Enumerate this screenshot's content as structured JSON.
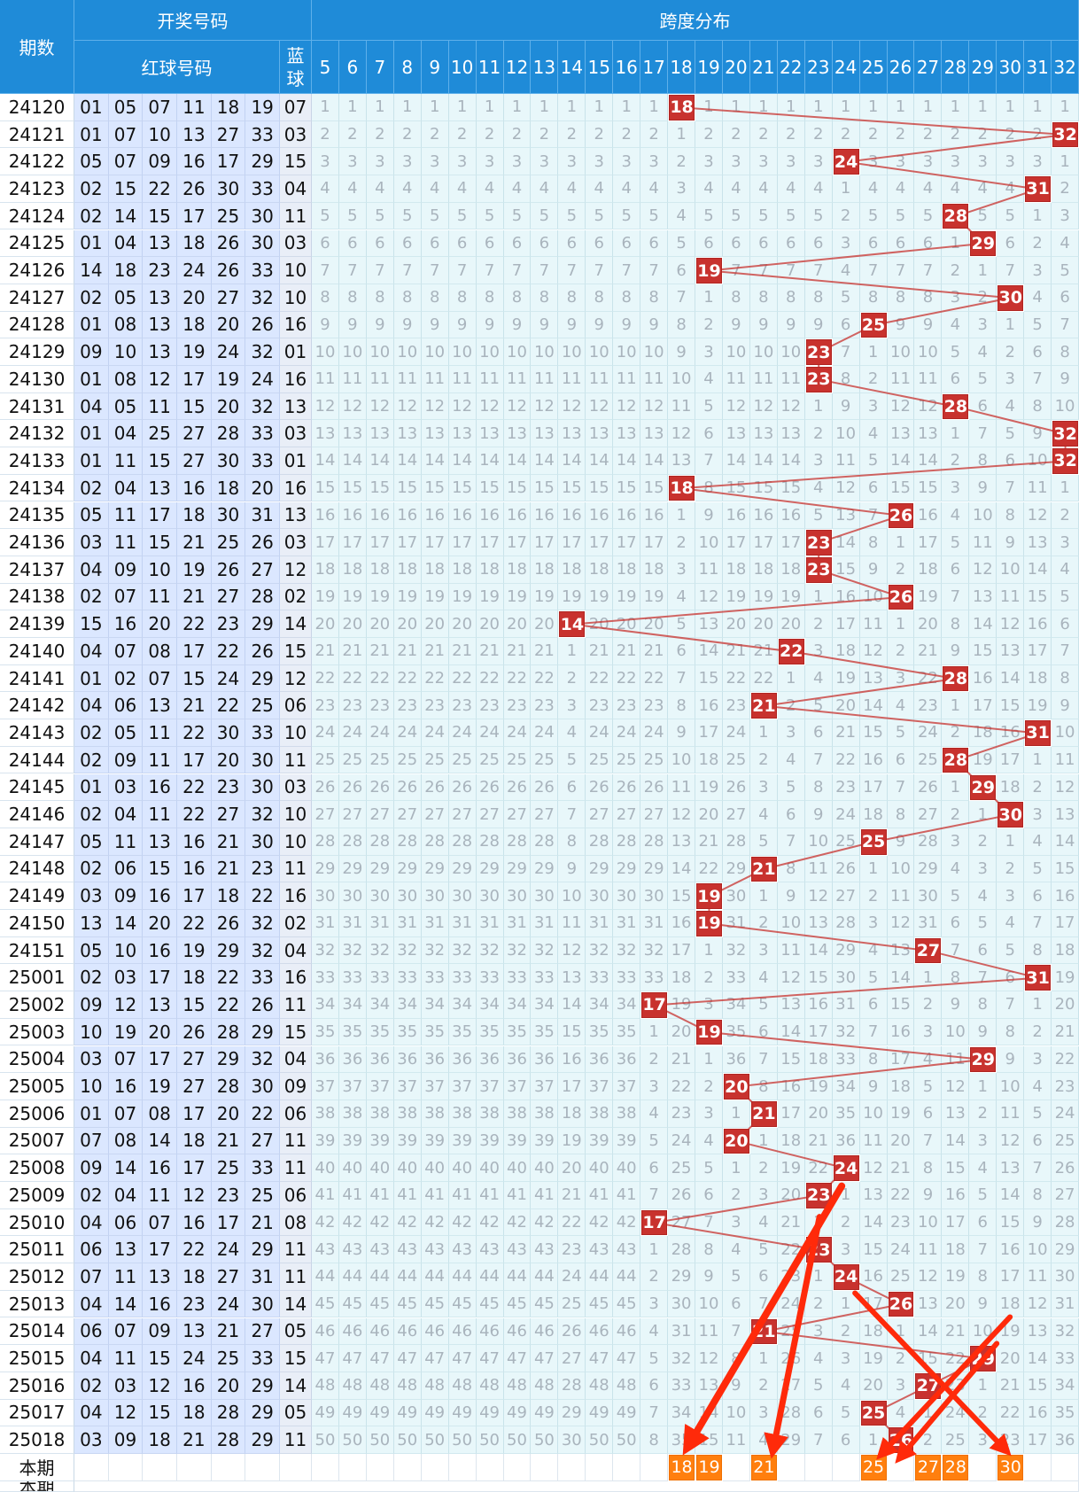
{
  "header": {
    "issue": "期数",
    "draw": "开奖号码",
    "red": "红球号码",
    "blue": "蓝球",
    "span": "跨度分布"
  },
  "span_cols": [
    "5",
    "6",
    "7",
    "8",
    "9",
    "10",
    "11",
    "12",
    "13",
    "14",
    "15",
    "16",
    "17",
    "18",
    "19",
    "20",
    "21",
    "22",
    "23",
    "24",
    "25",
    "26",
    "27",
    "28",
    "29",
    "30",
    "31",
    "32"
  ],
  "rows": [
    {
      "issue": "24120",
      "red": [
        "01",
        "05",
        "07",
        "11",
        "18",
        "19"
      ],
      "blue": "07",
      "span": 18
    },
    {
      "issue": "24121",
      "red": [
        "01",
        "07",
        "10",
        "13",
        "27",
        "33"
      ],
      "blue": "03",
      "span": 32
    },
    {
      "issue": "24122",
      "red": [
        "05",
        "07",
        "09",
        "16",
        "17",
        "29"
      ],
      "blue": "15",
      "span": 24
    },
    {
      "issue": "24123",
      "red": [
        "02",
        "15",
        "22",
        "26",
        "30",
        "33"
      ],
      "blue": "04",
      "span": 31
    },
    {
      "issue": "24124",
      "red": [
        "02",
        "14",
        "15",
        "17",
        "25",
        "30"
      ],
      "blue": "11",
      "span": 28
    },
    {
      "issue": "24125",
      "red": [
        "01",
        "04",
        "13",
        "18",
        "26",
        "30"
      ],
      "blue": "03",
      "span": 29
    },
    {
      "issue": "24126",
      "red": [
        "14",
        "18",
        "23",
        "24",
        "26",
        "33"
      ],
      "blue": "10",
      "span": 19
    },
    {
      "issue": "24127",
      "red": [
        "02",
        "05",
        "13",
        "20",
        "27",
        "32"
      ],
      "blue": "10",
      "span": 30
    },
    {
      "issue": "24128",
      "red": [
        "01",
        "08",
        "13",
        "18",
        "20",
        "26"
      ],
      "blue": "16",
      "span": 25
    },
    {
      "issue": "24129",
      "red": [
        "09",
        "10",
        "13",
        "19",
        "24",
        "32"
      ],
      "blue": "01",
      "span": 23
    },
    {
      "issue": "24130",
      "red": [
        "01",
        "08",
        "12",
        "17",
        "19",
        "24"
      ],
      "blue": "16",
      "span": 23
    },
    {
      "issue": "24131",
      "red": [
        "04",
        "05",
        "11",
        "15",
        "20",
        "32"
      ],
      "blue": "13",
      "span": 28
    },
    {
      "issue": "24132",
      "red": [
        "01",
        "04",
        "25",
        "27",
        "28",
        "33"
      ],
      "blue": "03",
      "span": 32
    },
    {
      "issue": "24133",
      "red": [
        "01",
        "11",
        "15",
        "27",
        "30",
        "33"
      ],
      "blue": "01",
      "span": 32
    },
    {
      "issue": "24134",
      "red": [
        "02",
        "04",
        "13",
        "16",
        "18",
        "20"
      ],
      "blue": "16",
      "span": 18
    },
    {
      "issue": "24135",
      "red": [
        "05",
        "11",
        "17",
        "18",
        "30",
        "31"
      ],
      "blue": "13",
      "span": 26
    },
    {
      "issue": "24136",
      "red": [
        "03",
        "11",
        "15",
        "21",
        "25",
        "26"
      ],
      "blue": "03",
      "span": 23
    },
    {
      "issue": "24137",
      "red": [
        "04",
        "09",
        "10",
        "19",
        "26",
        "27"
      ],
      "blue": "12",
      "span": 23
    },
    {
      "issue": "24138",
      "red": [
        "02",
        "07",
        "11",
        "21",
        "27",
        "28"
      ],
      "blue": "02",
      "span": 26
    },
    {
      "issue": "24139",
      "red": [
        "15",
        "16",
        "20",
        "22",
        "23",
        "29"
      ],
      "blue": "14",
      "span": 14
    },
    {
      "issue": "24140",
      "red": [
        "04",
        "07",
        "08",
        "17",
        "22",
        "26"
      ],
      "blue": "15",
      "span": 22
    },
    {
      "issue": "24141",
      "red": [
        "01",
        "02",
        "07",
        "15",
        "24",
        "29"
      ],
      "blue": "12",
      "span": 28
    },
    {
      "issue": "24142",
      "red": [
        "04",
        "06",
        "13",
        "21",
        "22",
        "25"
      ],
      "blue": "06",
      "span": 21
    },
    {
      "issue": "24143",
      "red": [
        "02",
        "05",
        "11",
        "22",
        "30",
        "33"
      ],
      "blue": "10",
      "span": 31
    },
    {
      "issue": "24144",
      "red": [
        "02",
        "09",
        "11",
        "17",
        "20",
        "30"
      ],
      "blue": "11",
      "span": 28
    },
    {
      "issue": "24145",
      "red": [
        "01",
        "03",
        "16",
        "22",
        "23",
        "30"
      ],
      "blue": "03",
      "span": 29
    },
    {
      "issue": "24146",
      "red": [
        "02",
        "04",
        "11",
        "22",
        "27",
        "32"
      ],
      "blue": "10",
      "span": 30
    },
    {
      "issue": "24147",
      "red": [
        "05",
        "11",
        "13",
        "16",
        "21",
        "30"
      ],
      "blue": "10",
      "span": 25
    },
    {
      "issue": "24148",
      "red": [
        "02",
        "06",
        "15",
        "16",
        "21",
        "23"
      ],
      "blue": "11",
      "span": 21
    },
    {
      "issue": "24149",
      "red": [
        "03",
        "09",
        "16",
        "17",
        "18",
        "22"
      ],
      "blue": "16",
      "span": 19
    },
    {
      "issue": "24150",
      "red": [
        "13",
        "14",
        "20",
        "22",
        "26",
        "32"
      ],
      "blue": "02",
      "span": 19
    },
    {
      "issue": "24151",
      "red": [
        "05",
        "10",
        "16",
        "19",
        "29",
        "32"
      ],
      "blue": "04",
      "span": 27
    },
    {
      "issue": "25001",
      "red": [
        "02",
        "03",
        "17",
        "18",
        "22",
        "33"
      ],
      "blue": "16",
      "span": 31
    },
    {
      "issue": "25002",
      "red": [
        "09",
        "12",
        "13",
        "15",
        "22",
        "26"
      ],
      "blue": "11",
      "span": 17
    },
    {
      "issue": "25003",
      "red": [
        "10",
        "19",
        "20",
        "26",
        "28",
        "29"
      ],
      "blue": "15",
      "span": 19
    },
    {
      "issue": "25004",
      "red": [
        "03",
        "07",
        "17",
        "27",
        "29",
        "32"
      ],
      "blue": "04",
      "span": 29
    },
    {
      "issue": "25005",
      "red": [
        "10",
        "16",
        "19",
        "27",
        "28",
        "30"
      ],
      "blue": "09",
      "span": 20
    },
    {
      "issue": "25006",
      "red": [
        "01",
        "07",
        "08",
        "17",
        "20",
        "22"
      ],
      "blue": "06",
      "span": 21
    },
    {
      "issue": "25007",
      "red": [
        "07",
        "08",
        "14",
        "18",
        "21",
        "27"
      ],
      "blue": "11",
      "span": 20
    },
    {
      "issue": "25008",
      "red": [
        "09",
        "14",
        "16",
        "17",
        "25",
        "33"
      ],
      "blue": "11",
      "span": 24
    },
    {
      "issue": "25009",
      "red": [
        "02",
        "04",
        "11",
        "12",
        "23",
        "25"
      ],
      "blue": "06",
      "span": 23
    },
    {
      "issue": "25010",
      "red": [
        "04",
        "06",
        "07",
        "16",
        "17",
        "21"
      ],
      "blue": "08",
      "span": 17
    },
    {
      "issue": "25011",
      "red": [
        "06",
        "13",
        "17",
        "22",
        "24",
        "29"
      ],
      "blue": "11",
      "span": 23
    },
    {
      "issue": "25012",
      "red": [
        "07",
        "11",
        "13",
        "18",
        "27",
        "31"
      ],
      "blue": "11",
      "span": 24
    },
    {
      "issue": "25013",
      "red": [
        "04",
        "14",
        "16",
        "23",
        "24",
        "30"
      ],
      "blue": "14",
      "span": 26
    },
    {
      "issue": "25014",
      "red": [
        "06",
        "07",
        "09",
        "13",
        "21",
        "27"
      ],
      "blue": "05",
      "span": 21
    },
    {
      "issue": "25015",
      "red": [
        "04",
        "11",
        "15",
        "24",
        "25",
        "33"
      ],
      "blue": "15",
      "span": 29
    },
    {
      "issue": "25016",
      "red": [
        "02",
        "03",
        "12",
        "16",
        "20",
        "29"
      ],
      "blue": "14",
      "span": 27
    },
    {
      "issue": "25017",
      "red": [
        "04",
        "12",
        "15",
        "18",
        "28",
        "29"
      ],
      "blue": "05",
      "span": 25
    },
    {
      "issue": "25018",
      "red": [
        "03",
        "09",
        "18",
        "21",
        "28",
        "29"
      ],
      "blue": "11",
      "span": 26
    }
  ],
  "current": {
    "label": "本期",
    "label2": "本期",
    "picks": [
      "18",
      "19",
      "21",
      "25",
      "27",
      "28",
      "30"
    ]
  },
  "colors": {
    "header": "#1f8bd8",
    "hit": "#c8322e",
    "pred": "#ff7f0e",
    "arrow": "#ff2a0a"
  }
}
